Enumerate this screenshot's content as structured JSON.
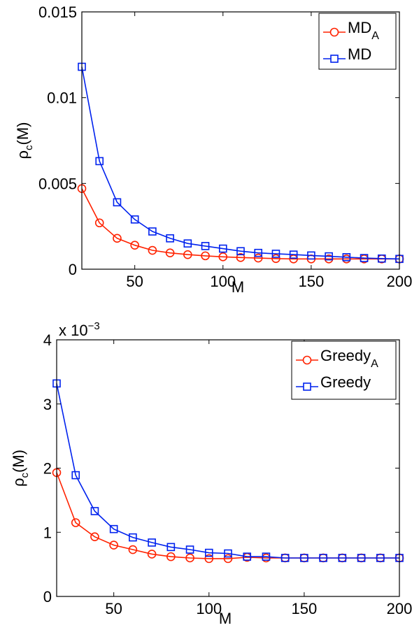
{
  "chart_data": [
    {
      "type": "line",
      "xlabel": "M",
      "ylabel_main": "ρ",
      "ylabel_sub": "c",
      "ylabel_tail": "(M)",
      "xlim": [
        20,
        200
      ],
      "ylim": [
        0,
        0.015
      ],
      "xticks": [
        50,
        100,
        150,
        200
      ],
      "xtick_labels": [
        "50",
        "100",
        "150",
        "200"
      ],
      "yticks": [
        0,
        0.005,
        0.01,
        0.015
      ],
      "ytick_labels": [
        "0",
        "0.005",
        "0.01",
        "0.015"
      ],
      "exponent_label": "",
      "legend_position": "top-right",
      "x": [
        20,
        30,
        40,
        50,
        60,
        70,
        80,
        90,
        100,
        110,
        120,
        130,
        140,
        150,
        160,
        170,
        180,
        190,
        200
      ],
      "series": [
        {
          "name": "MD",
          "name_sub": "A",
          "color": "#ff2200",
          "marker": "circle",
          "values": [
            0.0047,
            0.0027,
            0.0018,
            0.0014,
            0.0011,
            0.00095,
            0.00085,
            0.00078,
            0.00072,
            0.00068,
            0.00065,
            0.00062,
            0.0006,
            0.0006,
            0.0006,
            0.0006,
            0.0006,
            0.0006,
            0.0006
          ]
        },
        {
          "name": "MD",
          "name_sub": "",
          "color": "#0022ee",
          "marker": "square",
          "values": [
            0.0118,
            0.0063,
            0.0039,
            0.0029,
            0.0022,
            0.0018,
            0.0015,
            0.00135,
            0.0012,
            0.00105,
            0.00095,
            0.0009,
            0.00085,
            0.0008,
            0.00075,
            0.0007,
            0.00065,
            0.00062,
            0.0006
          ]
        }
      ]
    },
    {
      "type": "line",
      "xlabel": "M",
      "ylabel_main": "ρ",
      "ylabel_sub": "c",
      "ylabel_tail": "(M)",
      "xlim": [
        20,
        200
      ],
      "ylim": [
        0,
        4
      ],
      "xticks": [
        50,
        100,
        150,
        200
      ],
      "xtick_labels": [
        "50",
        "100",
        "150",
        "200"
      ],
      "yticks": [
        0,
        1,
        2,
        3,
        4
      ],
      "ytick_labels": [
        "0",
        "1",
        "2",
        "3",
        "4"
      ],
      "exponent_label": "x 10",
      "exponent_power": "−3",
      "legend_position": "top-right",
      "x": [
        20,
        30,
        40,
        50,
        60,
        70,
        80,
        90,
        100,
        110,
        120,
        130,
        140,
        150,
        160,
        170,
        180,
        190,
        200
      ],
      "series": [
        {
          "name": "Greedy",
          "name_sub": "A",
          "color": "#ff2200",
          "marker": "circle",
          "values": [
            1.93,
            1.15,
            0.93,
            0.8,
            0.73,
            0.66,
            0.62,
            0.6,
            0.59,
            0.59,
            0.61,
            0.6,
            0.6,
            0.6,
            0.6,
            0.6,
            0.6,
            0.6,
            0.6
          ]
        },
        {
          "name": "Greedy",
          "name_sub": "",
          "color": "#0022ee",
          "marker": "square",
          "values": [
            3.32,
            1.89,
            1.33,
            1.05,
            0.92,
            0.84,
            0.77,
            0.73,
            0.68,
            0.67,
            0.62,
            0.62,
            0.6,
            0.6,
            0.6,
            0.6,
            0.6,
            0.6,
            0.6
          ]
        }
      ]
    }
  ]
}
